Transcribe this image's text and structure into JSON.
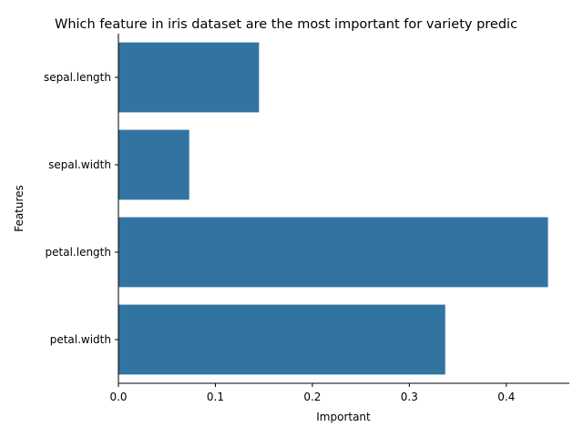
{
  "chart_data": {
    "type": "bar",
    "orientation": "horizontal",
    "title": "Which feature in iris dataset are the most important for variety predic",
    "xlabel": "Important",
    "ylabel": "Features",
    "categories": [
      "sepal.length",
      "sepal.width",
      "petal.length",
      "petal.width"
    ],
    "values": [
      0.145,
      0.073,
      0.443,
      0.337
    ],
    "xlim": [
      0,
      0.465
    ],
    "xticks": [
      0.0,
      0.1,
      0.2,
      0.3,
      0.4
    ],
    "xtick_labels": [
      "0.0",
      "0.1",
      "0.2",
      "0.3",
      "0.4"
    ],
    "grid": false,
    "bar_color": "#3274a1"
  }
}
